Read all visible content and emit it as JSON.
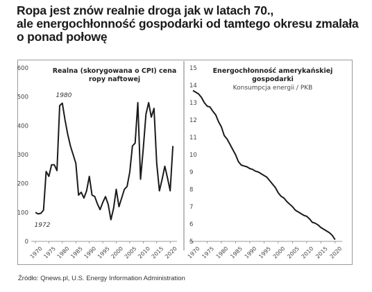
{
  "headline": {
    "line1": "Ropa jest znów realnie droga jak w latach 70.,",
    "line2": "ale energochłonność gospodarki od tamtego okresu zmalała",
    "line3": "o ponad połowę"
  },
  "source": "Źródło: Qnews.pl, U.S. Energy Information Administration",
  "colors": {
    "line": "#1a1a1a",
    "frame": "#9a9a9a",
    "axis": "#7a7a7a"
  },
  "chart_data": [
    {
      "type": "line",
      "title_line1": "Realna (skorygowana o CPI) cena",
      "title_line2": "ropy naftowej",
      "xlim": [
        1970,
        2022
      ],
      "ylim": [
        0,
        600
      ],
      "yticks": [
        0,
        100,
        200,
        300,
        400,
        500,
        600
      ],
      "xticks": [
        1970,
        1975,
        1980,
        1985,
        1990,
        1995,
        2000,
        2005,
        2010,
        2015,
        2020
      ],
      "annotations": [
        {
          "text": "1980",
          "x": 1980,
          "y": 478
        },
        {
          "text": "1972",
          "x": 1972,
          "y": 95
        }
      ],
      "grid": false,
      "x": [
        1970,
        1971,
        1972,
        1973,
        1974,
        1975,
        1976,
        1977,
        1978,
        1979,
        1980,
        1981,
        1982,
        1983,
        1984,
        1985,
        1986,
        1987,
        1988,
        1989,
        1990,
        1991,
        1992,
        1993,
        1994,
        1995,
        1996,
        1997,
        1998,
        1999,
        2000,
        2001,
        2002,
        2003,
        2004,
        2005,
        2006,
        2007,
        2008,
        2009,
        2010,
        2011,
        2012,
        2013,
        2014,
        2015,
        2016,
        2017,
        2018,
        2019,
        2020,
        2021
      ],
      "values": [
        100,
        95,
        97,
        108,
        242,
        225,
        265,
        265,
        245,
        470,
        478,
        420,
        370,
        330,
        300,
        270,
        160,
        170,
        150,
        175,
        225,
        160,
        155,
        130,
        110,
        135,
        155,
        128,
        75,
        115,
        180,
        120,
        150,
        180,
        190,
        240,
        330,
        340,
        480,
        215,
        320,
        440,
        480,
        430,
        460,
        270,
        175,
        215,
        260,
        220,
        175,
        330
      ]
    },
    {
      "type": "line",
      "title_line1": "Energochłonność amerykańskiej",
      "title_line2": "gospodarki",
      "subtitle": "Konsumpcja energii / PKB",
      "xlim": [
        1970,
        2022
      ],
      "ylim": [
        5,
        15
      ],
      "yticks": [
        5,
        6,
        7,
        8,
        9,
        10,
        11,
        12,
        13,
        14,
        15
      ],
      "xticks": [
        1970,
        1975,
        1980,
        1985,
        1990,
        1995,
        2000,
        2005,
        2010,
        2015,
        2020
      ],
      "grid": false,
      "x": [
        1970,
        1971,
        1972,
        1973,
        1974,
        1975,
        1976,
        1977,
        1978,
        1979,
        1980,
        1981,
        1982,
        1983,
        1984,
        1985,
        1986,
        1987,
        1988,
        1989,
        1990,
        1991,
        1992,
        1993,
        1994,
        1995,
        1996,
        1997,
        1998,
        1999,
        2000,
        2001,
        2002,
        2003,
        2004,
        2005,
        2006,
        2007,
        2008,
        2009,
        2010,
        2011,
        2012,
        2013,
        2014,
        2015,
        2016,
        2017,
        2018,
        2019,
        2020
      ],
      "values": [
        13.7,
        13.6,
        13.5,
        13.3,
        13.0,
        12.8,
        12.75,
        12.5,
        12.3,
        11.9,
        11.6,
        11.1,
        10.9,
        10.6,
        10.3,
        10.0,
        9.6,
        9.4,
        9.35,
        9.3,
        9.2,
        9.15,
        9.05,
        9.0,
        8.9,
        8.8,
        8.7,
        8.5,
        8.3,
        8.1,
        7.8,
        7.6,
        7.5,
        7.3,
        7.15,
        7.0,
        6.8,
        6.7,
        6.6,
        6.5,
        6.45,
        6.3,
        6.1,
        6.05,
        5.95,
        5.8,
        5.7,
        5.6,
        5.5,
        5.35,
        5.1
      ]
    }
  ]
}
